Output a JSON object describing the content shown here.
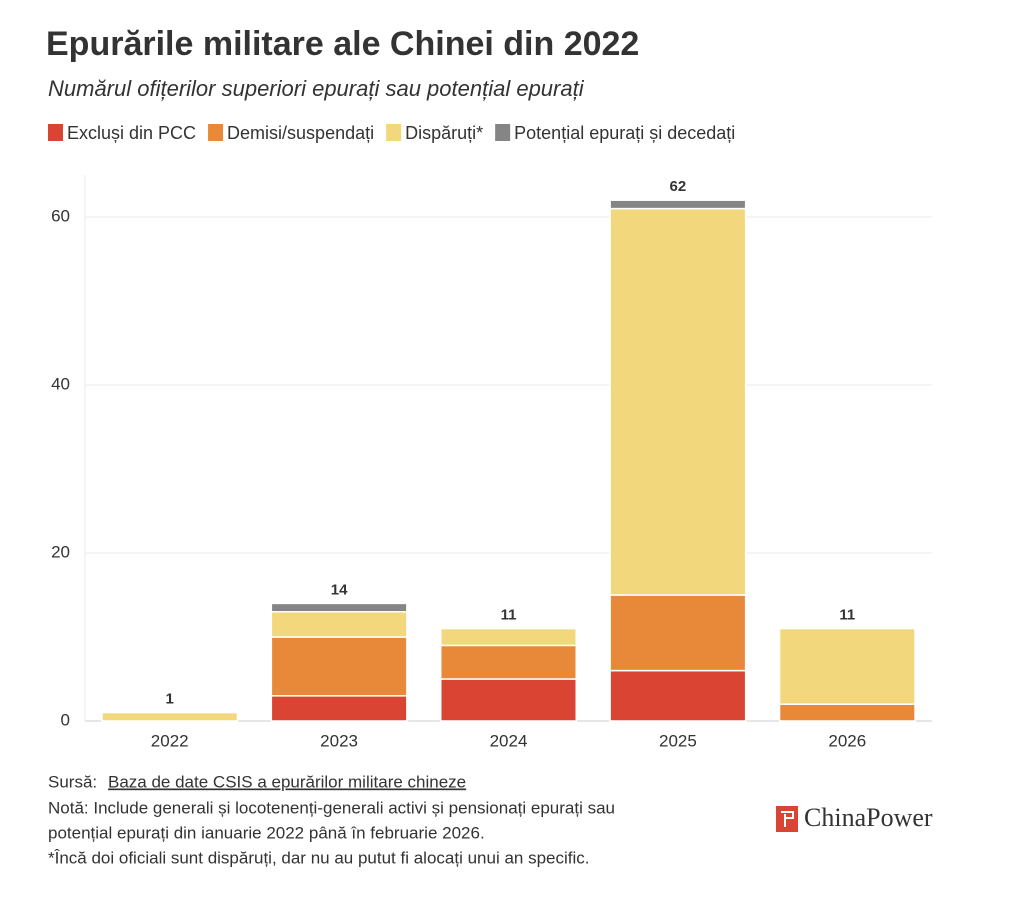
{
  "chart_data": {
    "type": "stacked-bar",
    "title": "Epurările militare ale Chinei din 2022",
    "subtitle": "Numărul ofițerilor superiori epurați sau potențial epurați",
    "categories": [
      "2022",
      "2023",
      "2024",
      "2025",
      "2026"
    ],
    "series": [
      {
        "name": "Excluși din PCC",
        "color": "#d94433",
        "values": [
          0,
          3,
          5,
          6,
          0
        ]
      },
      {
        "name": "Demisi/suspendați",
        "color": "#e8893a",
        "values": [
          0,
          7,
          4,
          9,
          2
        ]
      },
      {
        "name": "Dispăruți*",
        "color": "#f2d77c",
        "values": [
          1,
          3,
          2,
          46,
          9
        ]
      },
      {
        "name": "Potențial epurați și decedați",
        "color": "#858585",
        "values": [
          0,
          1,
          0,
          1,
          0
        ]
      }
    ],
    "totals": [
      1,
      14,
      11,
      62,
      11
    ],
    "ylim": [
      0,
      65
    ],
    "yticks": [
      0,
      20,
      40,
      60
    ],
    "grid": true
  },
  "footer": {
    "source_label": "Sursă:",
    "source_link": "Baza de date CSIS a epurărilor militare chineze",
    "notes": [
      "Notă: Include generali și locotenenți-generali activi și pensionați epurați sau",
      "potențial epurați din ianuarie 2022 până în februarie 2026.",
      "*Încă doi oficiali sunt dispăruți, dar nu au putut fi alocați unui an specific."
    ],
    "brand": "ChinaPower"
  }
}
